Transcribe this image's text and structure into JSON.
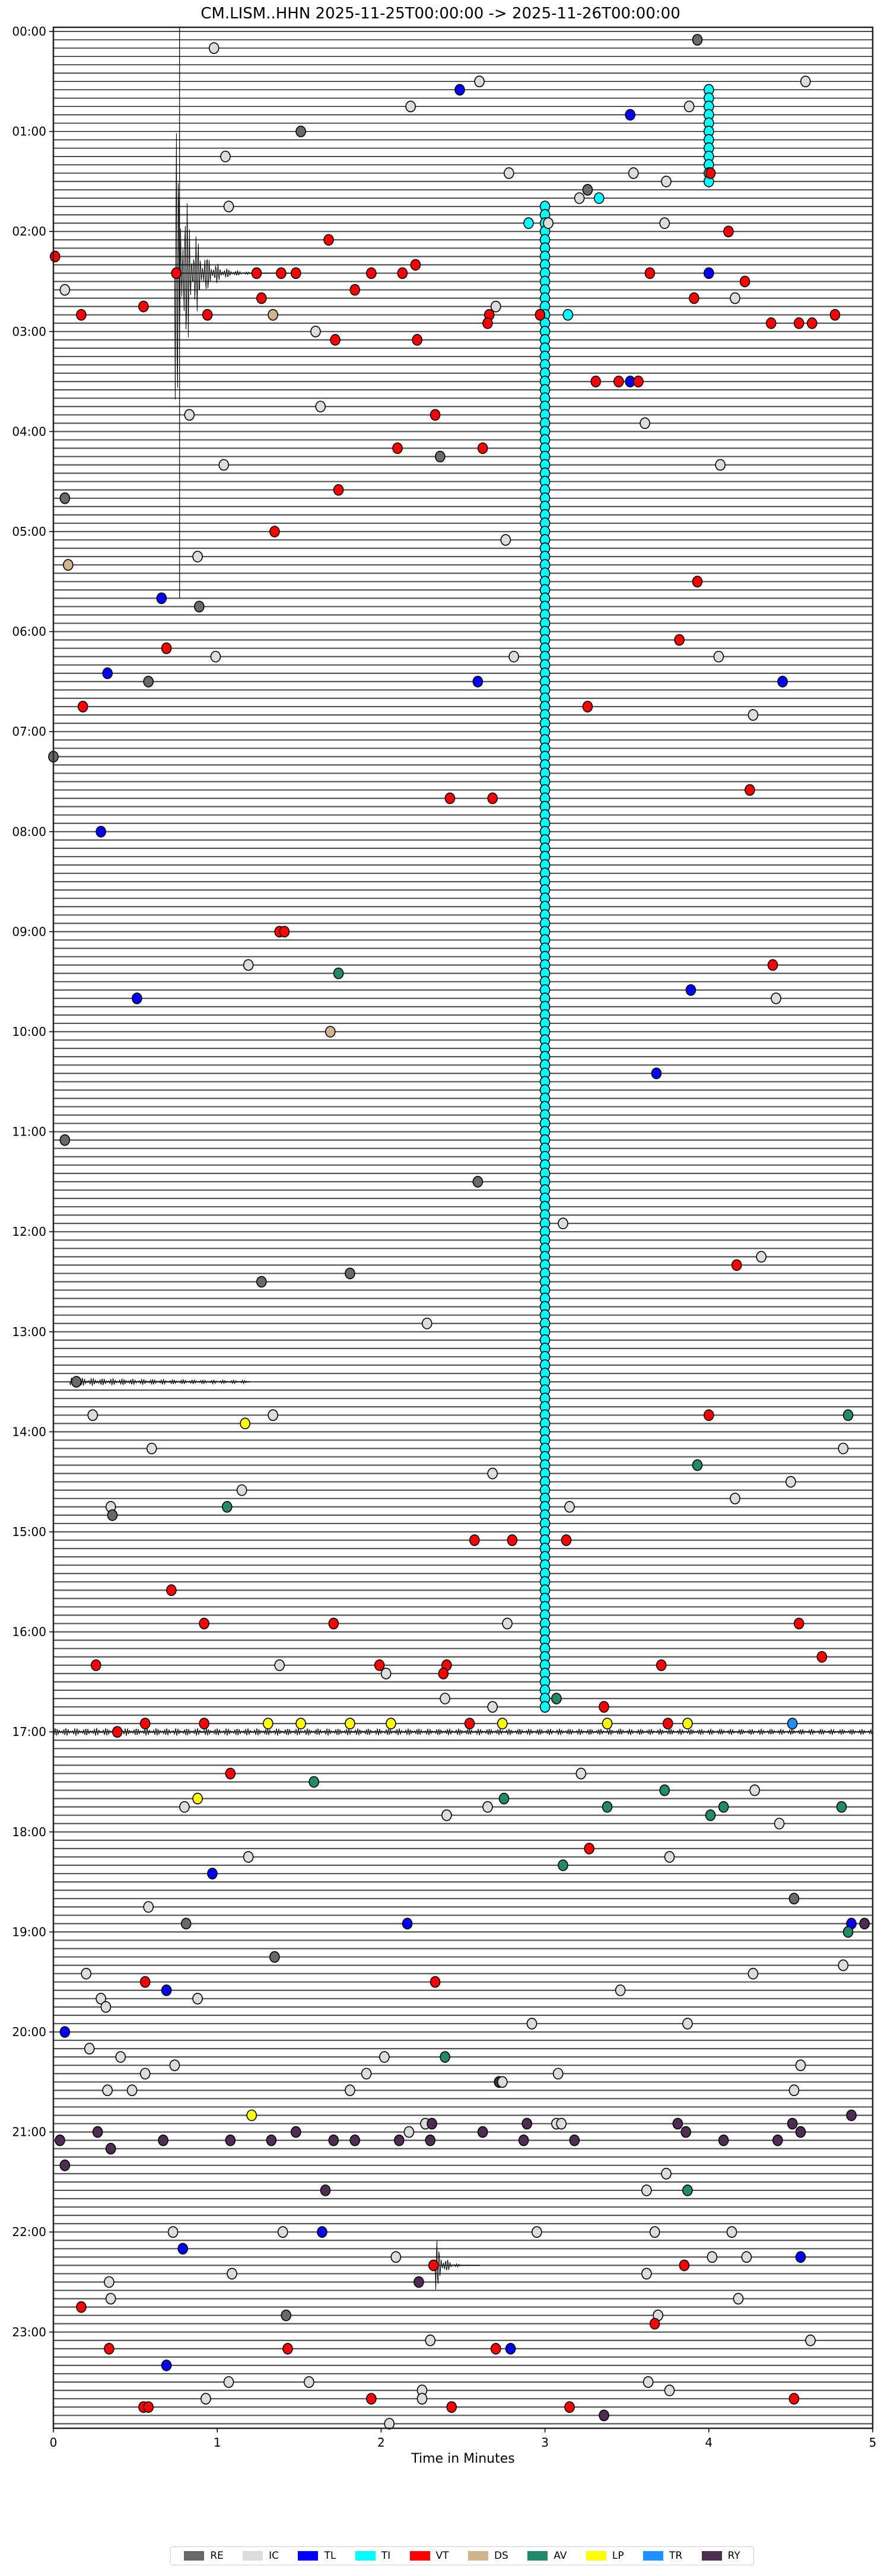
{
  "chart_data": {
    "type": "scatter",
    "title": "CM.LISM..HHN  2025-11-25T00:00:00 -> 2025-11-26T00:00:00",
    "xlabel": "Time in Minutes",
    "ylabel": "",
    "xlim": [
      0,
      5
    ],
    "x_ticks": [
      "0",
      "1",
      "2",
      "3",
      "4",
      "5"
    ],
    "row_minutes": 5,
    "y_tick_labels": [
      "00:00",
      "01:00",
      "02:00",
      "03:00",
      "04:00",
      "05:00",
      "06:00",
      "07:00",
      "08:00",
      "09:00",
      "10:00",
      "11:00",
      "12:00",
      "13:00",
      "14:00",
      "15:00",
      "16:00",
      "17:00",
      "18:00",
      "19:00",
      "20:00",
      "21:00",
      "22:00",
      "23:00"
    ],
    "legend": {
      "placement": "bottom-center",
      "entries": [
        {
          "label": "RE",
          "color": "#696969"
        },
        {
          "label": "IC",
          "color": "#dcdcdc"
        },
        {
          "label": "TL",
          "color": "#0000ff"
        },
        {
          "label": "TI",
          "color": "#00ffff"
        },
        {
          "label": "VT",
          "color": "#ff0000"
        },
        {
          "label": "DS",
          "color": "#d2b48c"
        },
        {
          "label": "AV",
          "color": "#218a6a"
        },
        {
          "label": "LP",
          "color": "#ffff00"
        },
        {
          "label": "TR",
          "color": "#1e90ff"
        },
        {
          "label": "RY",
          "color": "#4e2d52"
        }
      ]
    },
    "ti_runs": [
      {
        "minute": 4.0,
        "from": "00:35",
        "to": "01:30"
      },
      {
        "minute": 3.0,
        "from": "01:45",
        "to": "16:45"
      }
    ],
    "events_fields": [
      "row_start",
      "minute",
      "class"
    ],
    "events": [
      [
        "00:05",
        3.93,
        "RE"
      ],
      [
        "00:10",
        0.98,
        "IC"
      ],
      [
        "00:30",
        2.6,
        "IC"
      ],
      [
        "00:30",
        4.59,
        "IC"
      ],
      [
        "00:35",
        2.48,
        "TL"
      ],
      [
        "00:45",
        2.18,
        "IC"
      ],
      [
        "00:45",
        3.88,
        "IC"
      ],
      [
        "00:50",
        3.52,
        "TL"
      ],
      [
        "01:00",
        1.51,
        "RE"
      ],
      [
        "01:15",
        1.05,
        "IC"
      ],
      [
        "01:25",
        2.78,
        "IC"
      ],
      [
        "01:25",
        3.54,
        "IC"
      ],
      [
        "01:25",
        4.01,
        "VT"
      ],
      [
        "01:30",
        3.74,
        "IC"
      ],
      [
        "01:35",
        3.26,
        "RE"
      ],
      [
        "01:40",
        3.21,
        "IC"
      ],
      [
        "01:40",
        3.33,
        "TI"
      ],
      [
        "01:45",
        1.07,
        "IC"
      ],
      [
        "01:55",
        2.9,
        "TI"
      ],
      [
        "01:55",
        3.02,
        "IC"
      ],
      [
        "01:55",
        3.73,
        "IC"
      ],
      [
        "02:00",
        4.12,
        "VT"
      ],
      [
        "02:05",
        1.68,
        "VT"
      ],
      [
        "02:15",
        0.01,
        "VT"
      ],
      [
        "02:20",
        2.21,
        "VT"
      ],
      [
        "02:25",
        0.75,
        "VT"
      ],
      [
        "02:25",
        1.24,
        "VT"
      ],
      [
        "02:25",
        1.39,
        "VT"
      ],
      [
        "02:25",
        1.48,
        "VT"
      ],
      [
        "02:25",
        1.94,
        "VT"
      ],
      [
        "02:25",
        2.13,
        "VT"
      ],
      [
        "02:25",
        3.64,
        "VT"
      ],
      [
        "02:25",
        4.0,
        "TL"
      ],
      [
        "02:30",
        4.22,
        "VT"
      ],
      [
        "02:35",
        0.07,
        "IC"
      ],
      [
        "02:35",
        1.84,
        "VT"
      ],
      [
        "02:40",
        1.27,
        "VT"
      ],
      [
        "02:40",
        3.91,
        "VT"
      ],
      [
        "02:40",
        4.16,
        "IC"
      ],
      [
        "02:45",
        0.55,
        "VT"
      ],
      [
        "02:45",
        2.7,
        "IC"
      ],
      [
        "02:50",
        0.17,
        "VT"
      ],
      [
        "02:50",
        0.94,
        "VT"
      ],
      [
        "02:50",
        1.34,
        "DS"
      ],
      [
        "02:50",
        2.66,
        "VT"
      ],
      [
        "02:50",
        2.97,
        "VT"
      ],
      [
        "02:50",
        3.14,
        "TI"
      ],
      [
        "02:50",
        4.77,
        "VT"
      ],
      [
        "02:55",
        2.65,
        "VT"
      ],
      [
        "02:55",
        4.38,
        "VT"
      ],
      [
        "02:55",
        4.55,
        "VT"
      ],
      [
        "02:55",
        4.63,
        "VT"
      ],
      [
        "03:00",
        1.6,
        "IC"
      ],
      [
        "03:05",
        1.72,
        "VT"
      ],
      [
        "03:05",
        2.22,
        "VT"
      ],
      [
        "03:30",
        3.31,
        "VT"
      ],
      [
        "03:30",
        3.45,
        "VT"
      ],
      [
        "03:30",
        3.52,
        "TL"
      ],
      [
        "03:30",
        3.57,
        "VT"
      ],
      [
        "03:45",
        1.63,
        "IC"
      ],
      [
        "03:50",
        0.83,
        "IC"
      ],
      [
        "03:50",
        2.33,
        "VT"
      ],
      [
        "03:55",
        3.61,
        "IC"
      ],
      [
        "04:10",
        2.1,
        "VT"
      ],
      [
        "04:10",
        2.62,
        "VT"
      ],
      [
        "04:15",
        2.36,
        "RE"
      ],
      [
        "04:20",
        1.04,
        "IC"
      ],
      [
        "04:20",
        4.07,
        "IC"
      ],
      [
        "04:35",
        1.74,
        "VT"
      ],
      [
        "04:40",
        0.07,
        "RE"
      ],
      [
        "05:00",
        1.35,
        "VT"
      ],
      [
        "05:05",
        2.76,
        "IC"
      ],
      [
        "05:15",
        0.88,
        "IC"
      ],
      [
        "05:20",
        0.09,
        "DS"
      ],
      [
        "05:30",
        3.93,
        "VT"
      ],
      [
        "05:40",
        0.66,
        "TL"
      ],
      [
        "05:45",
        0.89,
        "RE"
      ],
      [
        "06:05",
        3.82,
        "VT"
      ],
      [
        "06:10",
        0.69,
        "VT"
      ],
      [
        "06:15",
        0.99,
        "IC"
      ],
      [
        "06:15",
        2.81,
        "IC"
      ],
      [
        "06:15",
        4.06,
        "IC"
      ],
      [
        "06:25",
        0.33,
        "TL"
      ],
      [
        "06:30",
        0.58,
        "RE"
      ],
      [
        "06:30",
        2.59,
        "TL"
      ],
      [
        "06:30",
        4.45,
        "TL"
      ],
      [
        "06:45",
        0.18,
        "VT"
      ],
      [
        "06:45",
        3.26,
        "VT"
      ],
      [
        "06:50",
        4.27,
        "IC"
      ],
      [
        "07:15",
        0.0,
        "RE"
      ],
      [
        "07:35",
        4.25,
        "VT"
      ],
      [
        "07:40",
        2.42,
        "VT"
      ],
      [
        "07:40",
        2.68,
        "VT"
      ],
      [
        "08:00",
        0.29,
        "TL"
      ],
      [
        "09:00",
        1.38,
        "VT"
      ],
      [
        "09:00",
        1.41,
        "VT"
      ],
      [
        "09:20",
        1.19,
        "IC"
      ],
      [
        "09:20",
        4.39,
        "VT"
      ],
      [
        "09:25",
        1.74,
        "AV"
      ],
      [
        "09:35",
        3.89,
        "TL"
      ],
      [
        "09:40",
        0.51,
        "TL"
      ],
      [
        "09:40",
        4.41,
        "IC"
      ],
      [
        "10:00",
        1.69,
        "DS"
      ],
      [
        "10:25",
        3.68,
        "TL"
      ],
      [
        "11:05",
        0.07,
        "RE"
      ],
      [
        "11:30",
        2.59,
        "RE"
      ],
      [
        "11:55",
        3.11,
        "IC"
      ],
      [
        "12:15",
        4.32,
        "IC"
      ],
      [
        "12:20",
        4.17,
        "VT"
      ],
      [
        "12:25",
        1.81,
        "RE"
      ],
      [
        "12:30",
        1.27,
        "RE"
      ],
      [
        "12:55",
        2.28,
        "IC"
      ],
      [
        "13:30",
        0.14,
        "RE"
      ],
      [
        "13:50",
        0.24,
        "IC"
      ],
      [
        "13:50",
        1.34,
        "IC"
      ],
      [
        "13:50",
        4.0,
        "VT"
      ],
      [
        "13:50",
        4.85,
        "AV"
      ],
      [
        "13:55",
        1.17,
        "LP"
      ],
      [
        "14:10",
        0.6,
        "IC"
      ],
      [
        "14:10",
        4.82,
        "IC"
      ],
      [
        "14:20",
        3.93,
        "AV"
      ],
      [
        "14:25",
        2.68,
        "IC"
      ],
      [
        "14:30",
        4.5,
        "IC"
      ],
      [
        "14:35",
        1.15,
        "IC"
      ],
      [
        "14:40",
        4.16,
        "IC"
      ],
      [
        "14:45",
        0.35,
        "IC"
      ],
      [
        "14:45",
        1.06,
        "AV"
      ],
      [
        "14:45",
        3.15,
        "IC"
      ],
      [
        "14:50",
        0.36,
        "RE"
      ],
      [
        "15:05",
        2.57,
        "VT"
      ],
      [
        "15:05",
        2.8,
        "VT"
      ],
      [
        "15:05",
        3.13,
        "VT"
      ],
      [
        "15:35",
        0.72,
        "VT"
      ],
      [
        "15:55",
        0.92,
        "VT"
      ],
      [
        "15:55",
        1.71,
        "VT"
      ],
      [
        "15:55",
        2.77,
        "IC"
      ],
      [
        "15:55",
        4.55,
        "VT"
      ],
      [
        "16:15",
        4.69,
        "VT"
      ],
      [
        "16:20",
        0.26,
        "VT"
      ],
      [
        "16:20",
        1.38,
        "IC"
      ],
      [
        "16:20",
        1.99,
        "VT"
      ],
      [
        "16:20",
        2.4,
        "VT"
      ],
      [
        "16:20",
        3.71,
        "VT"
      ],
      [
        "16:25",
        2.03,
        "IC"
      ],
      [
        "16:25",
        2.38,
        "VT"
      ],
      [
        "16:40",
        2.39,
        "IC"
      ],
      [
        "16:40",
        3.07,
        "AV"
      ],
      [
        "16:45",
        2.68,
        "IC"
      ],
      [
        "16:45",
        3.36,
        "VT"
      ],
      [
        "16:55",
        0.56,
        "VT"
      ],
      [
        "16:55",
        0.92,
        "VT"
      ],
      [
        "16:55",
        1.31,
        "LP"
      ],
      [
        "16:55",
        1.51,
        "LP"
      ],
      [
        "16:55",
        1.81,
        "LP"
      ],
      [
        "16:55",
        2.06,
        "LP"
      ],
      [
        "16:55",
        2.54,
        "VT"
      ],
      [
        "16:55",
        2.74,
        "LP"
      ],
      [
        "16:55",
        3.38,
        "LP"
      ],
      [
        "16:55",
        3.75,
        "VT"
      ],
      [
        "16:55",
        3.87,
        "LP"
      ],
      [
        "16:55",
        4.51,
        "TR"
      ],
      [
        "17:00",
        0.39,
        "VT"
      ],
      [
        "17:25",
        1.08,
        "VT"
      ],
      [
        "17:25",
        3.22,
        "IC"
      ],
      [
        "17:30",
        1.59,
        "AV"
      ],
      [
        "17:35",
        4.28,
        "IC"
      ],
      [
        "17:35",
        3.73,
        "AV"
      ],
      [
        "17:40",
        0.88,
        "LP"
      ],
      [
        "17:40",
        2.75,
        "AV"
      ],
      [
        "17:45",
        0.8,
        "IC"
      ],
      [
        "17:45",
        2.65,
        "IC"
      ],
      [
        "17:45",
        3.38,
        "AV"
      ],
      [
        "17:45",
        4.09,
        "AV"
      ],
      [
        "17:45",
        4.81,
        "AV"
      ],
      [
        "17:50",
        2.4,
        "IC"
      ],
      [
        "17:50",
        4.01,
        "AV"
      ],
      [
        "17:55",
        4.43,
        "IC"
      ],
      [
        "18:10",
        3.27,
        "VT"
      ],
      [
        "18:15",
        1.19,
        "IC"
      ],
      [
        "18:15",
        3.76,
        "IC"
      ],
      [
        "18:20",
        3.11,
        "AV"
      ],
      [
        "18:25",
        0.97,
        "TL"
      ],
      [
        "18:40",
        4.52,
        "RE"
      ],
      [
        "18:45",
        0.58,
        "IC"
      ],
      [
        "18:55",
        0.81,
        "RE"
      ],
      [
        "18:55",
        2.16,
        "TL"
      ],
      [
        "18:55",
        4.87,
        "TL"
      ],
      [
        "18:55",
        4.95,
        "RY"
      ],
      [
        "19:00",
        4.85,
        "AV"
      ],
      [
        "19:15",
        1.35,
        "RE"
      ],
      [
        "19:20",
        4.82,
        "IC"
      ],
      [
        "19:25",
        0.2,
        "IC"
      ],
      [
        "19:25",
        4.27,
        "IC"
      ],
      [
        "19:30",
        0.56,
        "VT"
      ],
      [
        "19:30",
        2.33,
        "VT"
      ],
      [
        "19:35",
        0.69,
        "TL"
      ],
      [
        "19:35",
        3.46,
        "IC"
      ],
      [
        "19:40",
        0.29,
        "IC"
      ],
      [
        "19:40",
        0.88,
        "IC"
      ],
      [
        "19:45",
        0.32,
        "IC"
      ],
      [
        "19:55",
        2.92,
        "IC"
      ],
      [
        "19:55",
        3.87,
        "IC"
      ],
      [
        "20:00",
        0.07,
        "TL"
      ],
      [
        "20:10",
        0.22,
        "IC"
      ],
      [
        "20:15",
        0.41,
        "IC"
      ],
      [
        "20:15",
        2.02,
        "IC"
      ],
      [
        "20:15",
        2.39,
        "AV"
      ],
      [
        "20:20",
        0.74,
        "IC"
      ],
      [
        "20:20",
        4.56,
        "IC"
      ],
      [
        "20:25",
        0.56,
        "IC"
      ],
      [
        "20:25",
        1.91,
        "IC"
      ],
      [
        "20:25",
        3.08,
        "IC"
      ],
      [
        "20:30",
        2.72,
        "RY"
      ],
      [
        "20:30",
        2.74,
        "IC"
      ],
      [
        "20:35",
        0.33,
        "IC"
      ],
      [
        "20:35",
        0.48,
        "IC"
      ],
      [
        "20:35",
        1.81,
        "IC"
      ],
      [
        "20:35",
        4.52,
        "IC"
      ],
      [
        "20:50",
        1.21,
        "LP"
      ],
      [
        "20:50",
        4.87,
        "RY"
      ],
      [
        "20:55",
        2.27,
        "IC"
      ],
      [
        "20:55",
        2.31,
        "RY"
      ],
      [
        "20:55",
        2.89,
        "RY"
      ],
      [
        "20:55",
        3.07,
        "IC"
      ],
      [
        "20:55",
        3.1,
        "IC"
      ],
      [
        "20:55",
        3.81,
        "RY"
      ],
      [
        "20:55",
        4.51,
        "RY"
      ],
      [
        "21:00",
        0.27,
        "RY"
      ],
      [
        "21:00",
        1.48,
        "RY"
      ],
      [
        "21:00",
        2.17,
        "IC"
      ],
      [
        "21:00",
        2.62,
        "RY"
      ],
      [
        "21:00",
        3.86,
        "RY"
      ],
      [
        "21:00",
        4.56,
        "RY"
      ],
      [
        "21:05",
        0.04,
        "RY"
      ],
      [
        "21:05",
        0.67,
        "RY"
      ],
      [
        "21:05",
        1.08,
        "RY"
      ],
      [
        "21:05",
        1.33,
        "RY"
      ],
      [
        "21:05",
        1.71,
        "RY"
      ],
      [
        "21:05",
        1.84,
        "RY"
      ],
      [
        "21:05",
        2.11,
        "RY"
      ],
      [
        "21:05",
        2.3,
        "RY"
      ],
      [
        "21:05",
        2.87,
        "RY"
      ],
      [
        "21:05",
        3.18,
        "RY"
      ],
      [
        "21:05",
        4.09,
        "RY"
      ],
      [
        "21:05",
        4.42,
        "RY"
      ],
      [
        "21:10",
        0.35,
        "RY"
      ],
      [
        "21:20",
        0.07,
        "RY"
      ],
      [
        "21:25",
        3.74,
        "IC"
      ],
      [
        "21:35",
        1.66,
        "RY"
      ],
      [
        "21:35",
        3.62,
        "IC"
      ],
      [
        "21:35",
        3.87,
        "AV"
      ],
      [
        "22:00",
        0.73,
        "IC"
      ],
      [
        "22:00",
        1.4,
        "IC"
      ],
      [
        "22:00",
        1.64,
        "TL"
      ],
      [
        "22:00",
        2.95,
        "IC"
      ],
      [
        "22:00",
        3.67,
        "IC"
      ],
      [
        "22:00",
        4.14,
        "IC"
      ],
      [
        "22:10",
        0.79,
        "TL"
      ],
      [
        "22:15",
        2.09,
        "IC"
      ],
      [
        "22:15",
        4.02,
        "IC"
      ],
      [
        "22:15",
        4.23,
        "IC"
      ],
      [
        "22:15",
        4.56,
        "TL"
      ],
      [
        "22:20",
        2.32,
        "VT"
      ],
      [
        "22:20",
        3.85,
        "VT"
      ],
      [
        "22:25",
        1.09,
        "IC"
      ],
      [
        "22:25",
        3.62,
        "IC"
      ],
      [
        "22:30",
        0.34,
        "IC"
      ],
      [
        "22:30",
        2.23,
        "RY"
      ],
      [
        "22:40",
        0.35,
        "IC"
      ],
      [
        "22:40",
        4.18,
        "IC"
      ],
      [
        "22:45",
        0.17,
        "VT"
      ],
      [
        "22:50",
        1.42,
        "RE"
      ],
      [
        "22:50",
        3.69,
        "IC"
      ],
      [
        "22:55",
        3.67,
        "VT"
      ],
      [
        "23:05",
        2.3,
        "IC"
      ],
      [
        "23:05",
        4.62,
        "IC"
      ],
      [
        "23:10",
        0.34,
        "VT"
      ],
      [
        "23:10",
        1.43,
        "VT"
      ],
      [
        "23:10",
        2.7,
        "VT"
      ],
      [
        "23:10",
        2.79,
        "TL"
      ],
      [
        "23:20",
        0.69,
        "TL"
      ],
      [
        "23:30",
        1.07,
        "IC"
      ],
      [
        "23:30",
        1.56,
        "IC"
      ],
      [
        "23:30",
        3.63,
        "IC"
      ],
      [
        "23:35",
        2.25,
        "IC"
      ],
      [
        "23:35",
        3.76,
        "IC"
      ],
      [
        "23:40",
        0.93,
        "IC"
      ],
      [
        "23:40",
        1.94,
        "VT"
      ],
      [
        "23:40",
        2.25,
        "IC"
      ],
      [
        "23:40",
        4.52,
        "VT"
      ],
      [
        "23:45",
        0.55,
        "VT"
      ],
      [
        "23:45",
        0.58,
        "VT"
      ],
      [
        "23:45",
        2.43,
        "VT"
      ],
      [
        "23:45",
        3.15,
        "VT"
      ],
      [
        "23:50",
        3.36,
        "RY"
      ],
      [
        "23:55",
        2.05,
        "IC"
      ]
    ]
  }
}
